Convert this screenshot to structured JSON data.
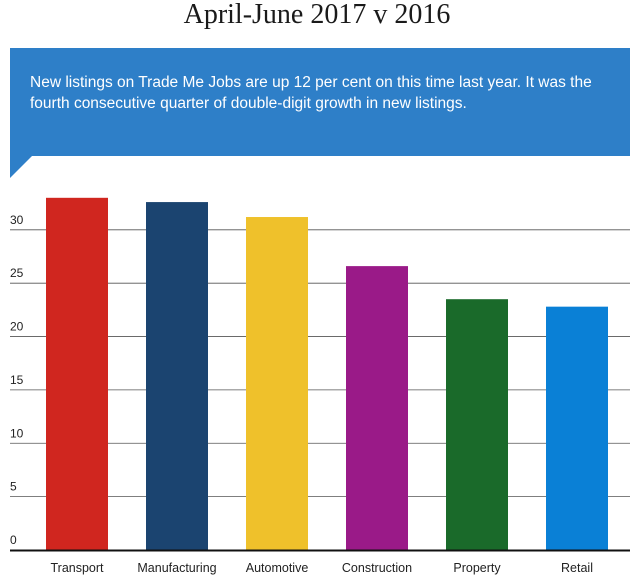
{
  "title": "April-June 2017 v 2016",
  "callout": {
    "text": "New listings on Trade Me Jobs are up 12 per cent on this time last year. It was the fourth consecutive quarter of double-digit growth in new listings.",
    "color": "#2e7fc8"
  },
  "chart_data": {
    "type": "bar",
    "categories": [
      "Transport",
      "Manufacturing",
      "Automotive",
      "Construction",
      "Property",
      "Retail"
    ],
    "values": [
      33,
      32.6,
      31.2,
      26.6,
      23.5,
      22.8
    ],
    "colors": [
      "#d0261f",
      "#1b4470",
      "#efc12b",
      "#9a1a88",
      "#1a6a2a",
      "#0a80d6"
    ],
    "yticks": [
      0,
      5,
      10,
      15,
      20,
      25,
      30
    ],
    "ylim": [
      0,
      34.2
    ],
    "grid": true
  }
}
